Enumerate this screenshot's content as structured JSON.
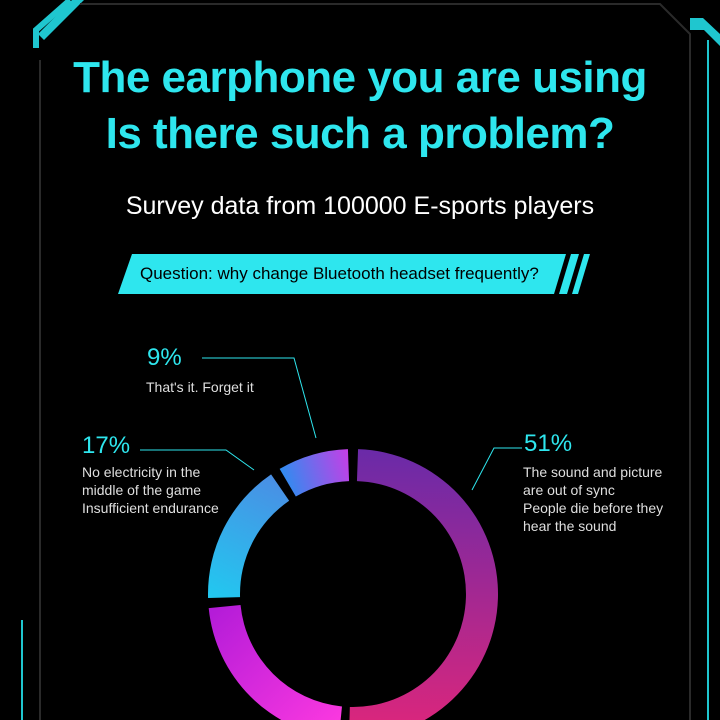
{
  "title_line1": "The earphone you are using",
  "title_line2": "Is there such a problem?",
  "subtitle": "Survey data from 100000 E-sports players",
  "question": "Question: why change Bluetooth headset frequently?",
  "colors": {
    "accent": "#2ee6ee",
    "background": "#000000",
    "frame": "#1fc6cf"
  },
  "chart_data": {
    "type": "pie",
    "donut": true,
    "slices": [
      {
        "value": 51,
        "label": "51%",
        "description": "The sound and picture\nare out of sync\nPeople die before they\nhear the sound",
        "color_start": "#6a2aa8",
        "color_end": "#e0267a"
      },
      {
        "value": 23,
        "label": "",
        "description": "",
        "color_start": "#ff3ae0",
        "color_end": "#b21bd8"
      },
      {
        "value": 17,
        "label": "17%",
        "description": "No electricity in the\nmiddle of the game\nInsufficient endurance",
        "color_start": "#21c9f0",
        "color_end": "#4a8ee4"
      },
      {
        "value": 9,
        "label": "9%",
        "description": "That's it. Forget it",
        "color_start": "#2e8df0",
        "color_end": "#c63ee6"
      }
    ]
  }
}
